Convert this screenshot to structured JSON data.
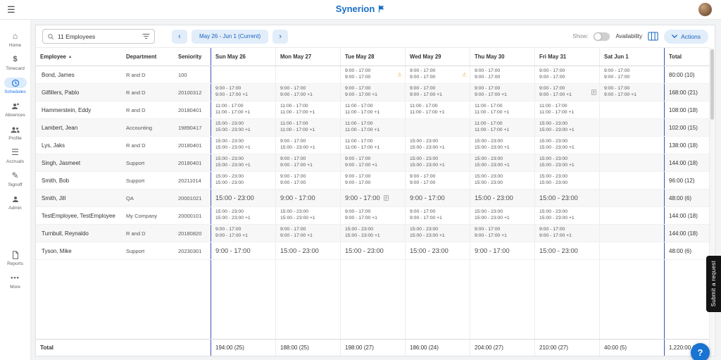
{
  "header": {
    "brand": "Synerion"
  },
  "sidebar": [
    {
      "label": "Home",
      "icon": "home-icon",
      "active": false
    },
    {
      "label": "Timecard",
      "icon": "timecard-dollar-icon",
      "active": false
    },
    {
      "label": "Schedules",
      "icon": "schedules-clock-icon",
      "active": true
    },
    {
      "label": "Absences",
      "icon": "absences-person-icon",
      "active": false
    },
    {
      "label": "Profile",
      "icon": "profile-people-icon",
      "active": false
    },
    {
      "label": "Accruals",
      "icon": "accruals-list-icon",
      "active": false
    },
    {
      "label": "Signoff",
      "icon": "signoff-pen-icon",
      "active": false
    },
    {
      "label": "Admin",
      "icon": "admin-person-icon",
      "active": false
    },
    {
      "label": "Reports",
      "icon": "reports-doc-icon",
      "active": false
    },
    {
      "label": "More",
      "icon": "more-ellipsis-icon",
      "active": false
    }
  ],
  "toolbar": {
    "search_value": "11 Employees",
    "date_range_label": "May 26 - Jun 1 (Current)",
    "show_label": "Show:",
    "availability_label": "Availability",
    "availability_on": false,
    "actions_label": "Actions"
  },
  "schedule": {
    "columns": [
      "Employee",
      "Department",
      "Seniority",
      "Sun May 26",
      "Mon May 27",
      "Tue May 28",
      "Wed May 29",
      "Thu May 30",
      "Fri May 31",
      "Sat Jun 1",
      "Total"
    ],
    "rows": [
      {
        "employee": "Bond, James",
        "department": "R and D",
        "seniority": "100",
        "days": [
          {
            "lines": []
          },
          {
            "lines": []
          },
          {
            "lines": [
              "9:00 - 17:00",
              "9:00 - 17:00"
            ],
            "icon": "warning"
          },
          {
            "lines": [
              "9:00 - 17:00",
              "9:00 - 17:00"
            ],
            "icon": "warning"
          },
          {
            "lines": [
              "9:00 - 17:00",
              "9:00 - 17:00"
            ]
          },
          {
            "lines": [
              "9:00 - 17:00",
              "9:00 - 17:00"
            ]
          },
          {
            "lines": [
              "9:00 - 17:00",
              "9:00 - 17:00"
            ]
          }
        ],
        "total": "80:00 (10)"
      },
      {
        "employee": "Gilfillers, Pablo",
        "department": "R and D",
        "seniority": "20100312",
        "days": [
          {
            "lines": [
              "9:00 - 17:00",
              "9:00 - 17:00 +1"
            ]
          },
          {
            "lines": [
              "9:00 - 17:00",
              "9:00 - 17:00 +1"
            ]
          },
          {
            "lines": [
              "9:00 - 17:00",
              "9:00 - 17:00 +1"
            ]
          },
          {
            "lines": [
              "9:00 - 17:00",
              "9:00 - 17:00 +1"
            ]
          },
          {
            "lines": [
              "9:00 - 17:00",
              "9:00 - 17:00 +1"
            ]
          },
          {
            "lines": [
              "9:00 - 17:00",
              "9:00 - 17:00 +1"
            ],
            "icon": "note"
          },
          {
            "lines": [
              "9:00 - 17:00",
              "9:00 - 17:00 +1"
            ]
          }
        ],
        "total": "168:00 (21)"
      },
      {
        "employee": "Hammerstein, Eddy",
        "department": "R and D",
        "seniority": "20180401",
        "days": [
          {
            "lines": [
              "11:00 - 17:00",
              "11:00 - 17:00 +1"
            ]
          },
          {
            "lines": [
              "11:00 - 17:00",
              "11:00 - 17:00 +1"
            ]
          },
          {
            "lines": [
              "11:00 - 17:00",
              "11:00 - 17:00 +1"
            ]
          },
          {
            "lines": [
              "11:00 - 17:00",
              "11:00 - 17:00 +1"
            ]
          },
          {
            "lines": [
              "11:00 - 17:00",
              "11:00 - 17:00 +1"
            ]
          },
          {
            "lines": [
              "11:00 - 17:00",
              "11:00 - 17:00 +1"
            ]
          },
          {
            "lines": []
          }
        ],
        "total": "108:00 (18)"
      },
      {
        "employee": "Lambert, Jean",
        "department": "Accounting",
        "seniority": "19890417",
        "days": [
          {
            "lines": [
              "15:00 - 23:00",
              "15:00 - 23:00 +1"
            ]
          },
          {
            "lines": [
              "11:00 - 17:00",
              "11:00 - 17:00 +1"
            ]
          },
          {
            "lines": [
              "11:00 - 17:00",
              "11:00 - 17:00 +1"
            ]
          },
          {
            "lines": []
          },
          {
            "lines": [
              "11:00 - 17:00",
              "11:00 - 17:00 +1"
            ]
          },
          {
            "lines": [
              "15:00 - 23:00",
              "15:00 - 23:00 +1"
            ]
          },
          {
            "lines": []
          }
        ],
        "total": "102:00 (15)"
      },
      {
        "employee": "Lys, Jaks",
        "department": "R and D",
        "seniority": "20180401",
        "days": [
          {
            "lines": [
              "15:00 - 23:00",
              "15:00 - 23:00 +1"
            ]
          },
          {
            "lines": [
              "9:00 - 17:00",
              "15:00 - 23:00 +1"
            ]
          },
          {
            "lines": [
              "11:00 - 17:00",
              "11:00 - 17:00 +1"
            ]
          },
          {
            "lines": [
              "15:00 - 23:00",
              "15:00 - 23:00 +1"
            ]
          },
          {
            "lines": [
              "15:00 - 23:00",
              "15:00 - 23:00 +1"
            ]
          },
          {
            "lines": [
              "15:00 - 23:00",
              "15:00 - 23:00 +1"
            ]
          },
          {
            "lines": []
          }
        ],
        "total": "138:00 (18)"
      },
      {
        "employee": "Singh, Jasmeet",
        "department": "Support",
        "seniority": "20180401",
        "days": [
          {
            "lines": [
              "15:00 - 23:00",
              "15:00 - 23:00 +1"
            ]
          },
          {
            "lines": [
              "9:00 - 17:00",
              "9:00 - 17:00 +1"
            ]
          },
          {
            "lines": [
              "9:00 - 17:00",
              "9:00 - 17:00 +1"
            ]
          },
          {
            "lines": [
              "15:00 - 23:00",
              "15:00 - 23:00 +1"
            ]
          },
          {
            "lines": [
              "15:00 - 23:00",
              "15:00 - 23:00 +1"
            ]
          },
          {
            "lines": [
              "15:00 - 23:00",
              "15:00 - 23:00 +1"
            ]
          },
          {
            "lines": []
          }
        ],
        "total": "144:00 (18)"
      },
      {
        "employee": "Smith, Bob",
        "department": "Support",
        "seniority": "20211014",
        "days": [
          {
            "lines": [
              "15:00 - 23:00",
              "15:00 - 23:00"
            ]
          },
          {
            "lines": [
              "9:00 - 17:00",
              "9:00 - 17:00"
            ]
          },
          {
            "lines": [
              "9:00 - 17:00",
              "9:00 - 17:00"
            ]
          },
          {
            "lines": [
              "9:00 - 17:00",
              "9:00 - 17:00"
            ]
          },
          {
            "lines": [
              "15:00 - 23:00",
              "15:00 - 23:00"
            ]
          },
          {
            "lines": [
              "15:00 - 23:00",
              "15:00 - 23:00"
            ]
          },
          {
            "lines": []
          }
        ],
        "total": "96:00 (12)"
      },
      {
        "employee": "Smith, Jill",
        "department": "QA",
        "seniority": "20001021",
        "days": [
          {
            "lines": [
              "15:00 - 23:00"
            ]
          },
          {
            "lines": [
              "9:00 - 17:00"
            ]
          },
          {
            "lines": [
              "9:00 - 17:00"
            ],
            "icon": "note"
          },
          {
            "lines": [
              "9:00 - 17:00"
            ]
          },
          {
            "lines": [
              "15:00 - 23:00"
            ]
          },
          {
            "lines": [
              "15:00 - 23:00"
            ]
          },
          {
            "lines": []
          }
        ],
        "total": "48:00 (6)"
      },
      {
        "employee": "TestEmployee, TestEmployee",
        "department": "My Company",
        "seniority": "20000101",
        "days": [
          {
            "lines": [
              "15:00 - 23:00",
              "15:00 - 23:00 +1"
            ]
          },
          {
            "lines": [
              "15:00 - 23:00",
              "15:00 - 23:00 +1"
            ]
          },
          {
            "lines": [
              "9:00 - 17:00",
              "9:00 - 17:00 +1"
            ]
          },
          {
            "lines": [
              "9:00 - 17:00",
              "9:00 - 17:00 +1"
            ]
          },
          {
            "lines": [
              "15:00 - 23:00",
              "15:00 - 23:00 +1"
            ]
          },
          {
            "lines": [
              "15:00 - 23:00",
              "15:00 - 23:00 +1"
            ]
          },
          {
            "lines": []
          }
        ],
        "total": "144:00 (18)"
      },
      {
        "employee": "Turnbull, Reynaldo",
        "department": "R and D",
        "seniority": "20180820",
        "days": [
          {
            "lines": [
              "9:00 - 17:00",
              "9:00 - 17:00 +1"
            ]
          },
          {
            "lines": [
              "9:00 - 17:00",
              "9:00 - 17:00 +1"
            ]
          },
          {
            "lines": [
              "15:00 - 23:00",
              "15:00 - 23:00 +1"
            ]
          },
          {
            "lines": [
              "15:00 - 23:00",
              "15:00 - 23:00 +1"
            ]
          },
          {
            "lines": [
              "9:00 - 17:00",
              "9:00 - 17:00 +1"
            ]
          },
          {
            "lines": [
              "9:00 - 17:00",
              "9:00 - 17:00 +1"
            ]
          },
          {
            "lines": []
          }
        ],
        "total": "144:00 (18)"
      },
      {
        "employee": "Tyson, Mike",
        "department": "Support",
        "seniority": "20230301",
        "days": [
          {
            "lines": [
              "9:00 - 17:00"
            ]
          },
          {
            "lines": [
              "15:00 - 23:00"
            ]
          },
          {
            "lines": [
              "15:00 - 23:00"
            ]
          },
          {
            "lines": [
              "15:00 - 23:00"
            ]
          },
          {
            "lines": [
              "9:00 - 17:00"
            ]
          },
          {
            "lines": [
              "15:00 - 23:00"
            ]
          },
          {
            "lines": []
          }
        ],
        "total": "48:00 (6)"
      }
    ],
    "footer": {
      "label": "Total",
      "day_totals": [
        "194:00 (25)",
        "188:00 (25)",
        "198:00 (27)",
        "186:00 (24)",
        "204:00 (27)",
        "210:00 (27)",
        "40:00 (5)"
      ],
      "grand_total": "1,220:00 (160)"
    }
  },
  "overlays": {
    "submit_request_label": "Submit a request",
    "help_label": "?"
  }
}
